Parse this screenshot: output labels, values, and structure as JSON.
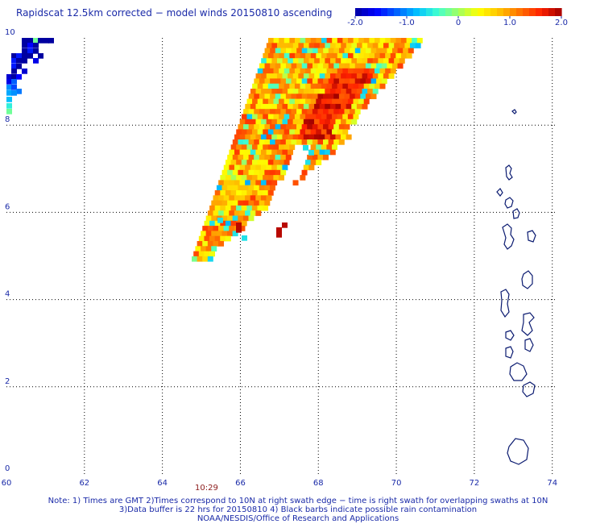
{
  "title": "Rapidscat 12.5km corrected − model winds 20150810 ascending",
  "colorbar": {
    "tick_labels": [
      "-2.0",
      "-1.0",
      "0",
      "1.0",
      "2.0"
    ],
    "colors": [
      "#0000a0",
      "#0000ff",
      "#0060ff",
      "#00c0ff",
      "#40ffd0",
      "#a0ff60",
      "#ffff00",
      "#ffc000",
      "#ff7000",
      "#ff2000",
      "#a00000"
    ]
  },
  "chart_data": {
    "type": "heatmap",
    "title": "Rapidscat 12.5km corrected − model winds 20150810 ascending",
    "x_ticks": [
      "60",
      "62",
      "64",
      "66",
      "68",
      "70",
      "72",
      "74"
    ],
    "y_ticks": [
      "0",
      "2",
      "4",
      "6",
      "8",
      "10"
    ],
    "xlim": [
      60,
      74.5
    ],
    "ylim": [
      0,
      10
    ],
    "value_range": [
      -2.0,
      2.0
    ],
    "grid": true,
    "swath_time": "10:29"
  },
  "notes": {
    "line1": "Note: 1) Times are GMT 2)Times correspond to 10N at right swath edge − time is right swath for overlapping swaths at 10N",
    "line2": "3)Data buffer is 22 hrs for 20150810 4) Black barbs indicate possible rain contamination",
    "line3": "NOAA/NESDIS/Office of Research and Applications"
  },
  "coastline_color": "#0a1a70"
}
